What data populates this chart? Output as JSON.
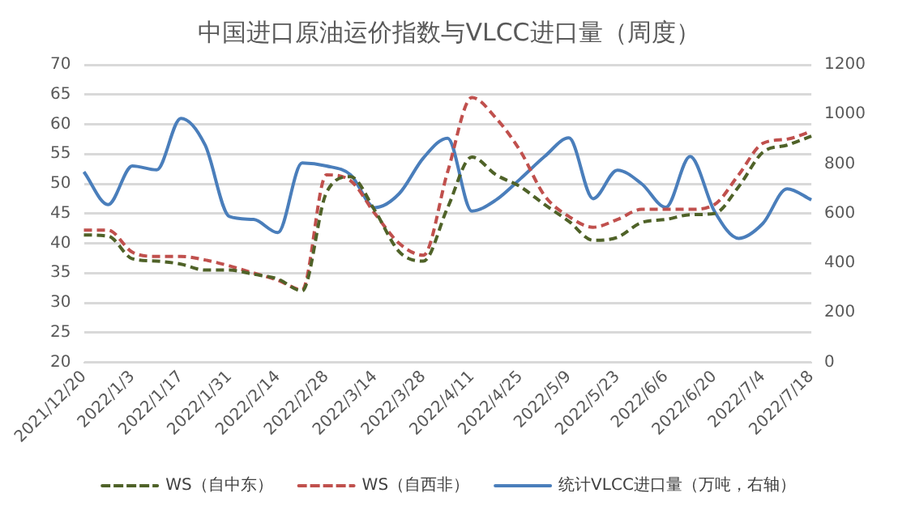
{
  "chart_data": {
    "type": "line",
    "title": "中国进口原油运价指数与VLCC进口量（周度）",
    "categories": [
      "2021/12/20",
      null,
      "2022/1/3",
      null,
      "2022/1/17",
      null,
      "2022/1/31",
      null,
      "2022/2/14",
      null,
      "2022/2/28",
      null,
      "2022/3/14",
      null,
      "2022/3/28",
      null,
      "2022/4/11",
      null,
      "2022/4/25",
      null,
      "2022/5/9",
      null,
      "2022/5/23",
      null,
      "2022/6/6",
      null,
      "2022/6/20",
      null,
      "2022/7/4",
      null,
      "2022/7/18"
    ],
    "series": [
      {
        "name": "WS（自中东）",
        "color": "#4f6228",
        "line_style": "dashed",
        "values": [
          41.4,
          41.2,
          37.4,
          37,
          36.5,
          35.5,
          35.5,
          34.8,
          34,
          32,
          48.5,
          51.2,
          45.5,
          38.6,
          37,
          46,
          54.5,
          51.5,
          49.5,
          46.5,
          43.7,
          40.5,
          41,
          43.5,
          44,
          44.8,
          45,
          49.5,
          55.3,
          56.5,
          58
        ]
      },
      {
        "name": "WS（自西非）",
        "color": "#c0504d",
        "line_style": "dashed",
        "values": [
          42.2,
          42.2,
          38.5,
          37.8,
          37.8,
          37.2,
          36.2,
          35,
          33.8,
          32.2,
          51.5,
          50.5,
          45,
          40,
          38,
          52,
          64.5,
          61,
          55.5,
          48,
          44.5,
          42.7,
          44,
          45.7,
          45.7,
          45.7,
          46.5,
          51.5,
          56.8,
          57.5,
          58.8
        ]
      },
      {
        "name": "统计VLCC进口量（万吨，右轴）",
        "color": "#4a7ebb",
        "line_style": "solid",
        "axis": "y2",
        "values": [
          768,
          636,
          792,
          776,
          984,
          876,
          588,
          576,
          523,
          804,
          792,
          756,
          624,
          680,
          824,
          904,
          610,
          655,
          740,
          830,
          905,
          660,
          775,
          720,
          625,
          830,
          610,
          500,
          560,
          700,
          655
        ]
      }
    ],
    "ylim": [
      20,
      70
    ],
    "yticks": [
      20,
      25,
      30,
      35,
      40,
      45,
      50,
      55,
      60,
      65,
      70
    ],
    "y2lim": [
      0,
      1200
    ],
    "y2ticks": [
      0,
      200,
      400,
      600,
      800,
      1000,
      1200
    ],
    "grid": "y",
    "legend": "bottom"
  }
}
